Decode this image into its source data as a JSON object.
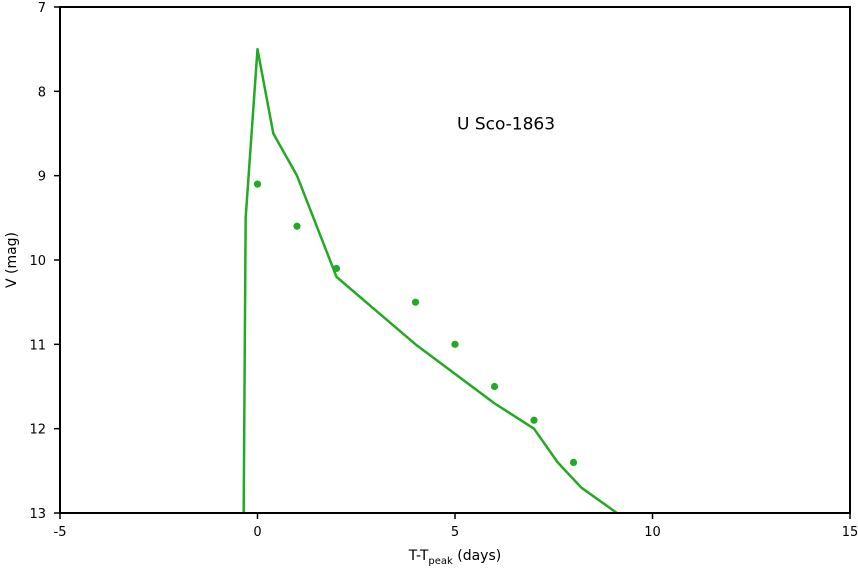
{
  "chart_data": {
    "type": "line",
    "title": "",
    "xlabel": {
      "main": "T-T",
      "sub": "peak",
      "suffix": " (days)"
    },
    "ylabel": "V (mag)",
    "xlim": [
      -5,
      15
    ],
    "ylim": [
      7,
      13
    ],
    "y_inverted": true,
    "grid": false,
    "legend": "none",
    "x_ticks": [
      -5,
      0,
      5,
      10,
      15
    ],
    "y_ticks": [
      7,
      8,
      9,
      10,
      11,
      12,
      13
    ],
    "annotation": "U Sco-1863",
    "color": "#22aa22",
    "series": [
      {
        "kind": "line",
        "points": [
          [
            -0.35,
            13.0
          ],
          [
            -0.3,
            9.5
          ],
          [
            0.0,
            7.5
          ],
          [
            0.4,
            8.5
          ],
          [
            1.0,
            9.0
          ],
          [
            2.0,
            10.2
          ],
          [
            4.0,
            11.0
          ],
          [
            5.0,
            11.35
          ],
          [
            6.0,
            11.7
          ],
          [
            7.0,
            12.0
          ],
          [
            7.6,
            12.4
          ],
          [
            8.2,
            12.7
          ],
          [
            9.1,
            13.0
          ]
        ]
      },
      {
        "kind": "scatter",
        "points": [
          [
            0.0,
            9.1
          ],
          [
            1.0,
            9.6
          ],
          [
            2.0,
            10.1
          ],
          [
            4.0,
            10.5
          ],
          [
            5.0,
            11.0
          ],
          [
            6.0,
            11.5
          ],
          [
            7.0,
            11.9
          ],
          [
            8.0,
            12.4
          ]
        ]
      }
    ]
  }
}
